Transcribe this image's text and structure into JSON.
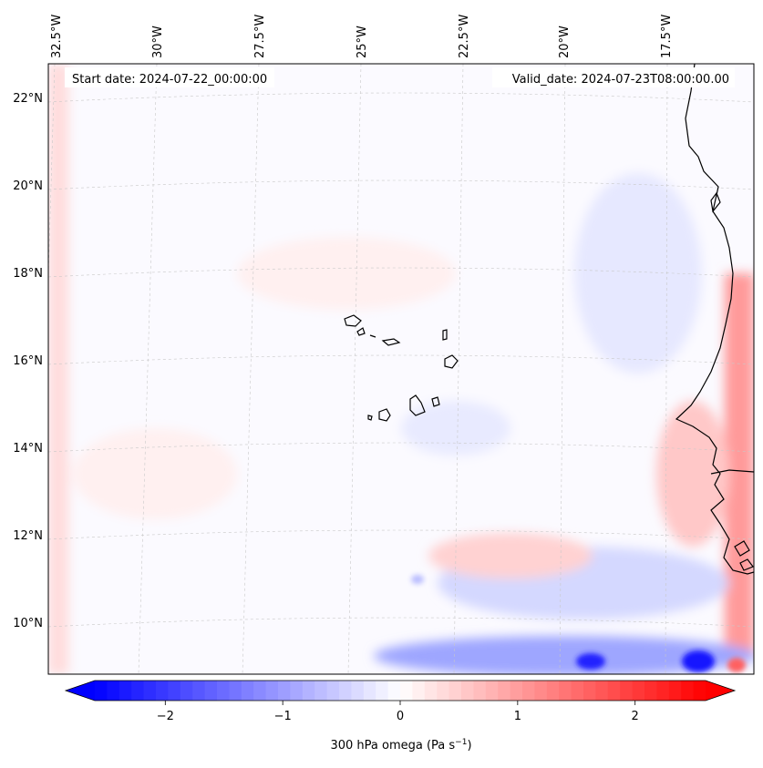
{
  "map": {
    "start_label": "Start date: 2024-07-22_00:00:00",
    "valid_label": "Valid_date: 2024-07-23T08:00:00.00",
    "lon_labels": [
      "32.5°W",
      "30°W",
      "27.5°W",
      "25°W",
      "22.5°W",
      "20°W",
      "17.5°W"
    ],
    "lat_labels": [
      "22°N",
      "20°N",
      "18°N",
      "16°N",
      "14°N",
      "12°N",
      "10°N"
    ],
    "colorbar": {
      "label_main": "300 hPa omega (Pa s",
      "label_exp": "−1",
      "label_close": ")",
      "ticks": [
        "−2",
        "−1",
        "0",
        "1",
        "2"
      ],
      "min": -2.6,
      "max": 2.6,
      "low_color": "#0000ff",
      "mid_color": "#ffffff",
      "high_color": "#ff0000"
    },
    "coast_color": "#000000",
    "grid_color": "#c8c8c8"
  }
}
